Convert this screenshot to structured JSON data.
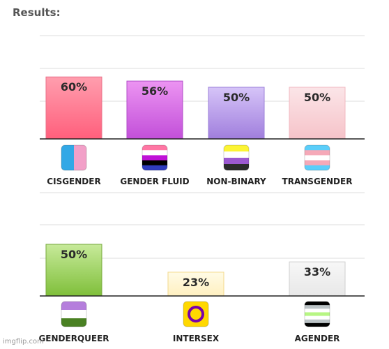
{
  "header": {
    "title": "Results:"
  },
  "watermark": "imgflip.com",
  "chart_data": [
    {
      "type": "bar",
      "ylim": [
        0,
        100
      ],
      "grid": true,
      "categories": [
        "CISGENDER",
        "GENDER FLUID",
        "NON-BINARY",
        "TRANSGENDER"
      ],
      "values": [
        60,
        56,
        50,
        50
      ],
      "data_labels": [
        "60%",
        "56%",
        "50%",
        "50%"
      ],
      "bar_colors": [
        [
          "#ff9eae",
          "#ff5f7c"
        ],
        [
          "#ec94f2",
          "#c24fd9"
        ],
        [
          "#d6c4f8",
          "#a07edd"
        ],
        [
          "#fbe5e8",
          "#f6c3c9"
        ]
      ],
      "bar_borders": [
        "#e8718a",
        "#b04dc8",
        "#9b80d8",
        "#f2b8c0"
      ],
      "flags": [
        [
          "#32a8e6",
          "#f2a0c8"
        ],
        [
          "#ff76a4",
          "#ffffff",
          "#c011d7",
          "#000000",
          "#2f3cbe"
        ],
        [
          "#fcf434",
          "#ffffff",
          "#9c59d1",
          "#2c2c2c"
        ],
        [
          "#5bcefa",
          "#f5a9b8",
          "#ffffff",
          "#f5a9b8",
          "#5bcefa"
        ]
      ]
    },
    {
      "type": "bar",
      "ylim": [
        0,
        100
      ],
      "grid": true,
      "categories": [
        "GENDERQUEER",
        "INTERSEX",
        "AGENDER"
      ],
      "values": [
        50,
        23,
        33
      ],
      "data_labels": [
        "50%",
        "23%",
        "33%"
      ],
      "bar_colors": [
        [
          "#c7ea9a",
          "#7fbf3a"
        ],
        [
          "#fffbe6",
          "#fff0c0"
        ],
        [
          "#f7f7f7",
          "#e8e8e8"
        ]
      ],
      "bar_borders": [
        "#77a83d",
        "#f3d98c",
        "#cfcfcf"
      ],
      "flags": [
        [
          "#b57edc",
          "#ffffff",
          "#4a8123"
        ],
        [
          "#ffd800",
          "#7902aa"
        ],
        [
          "#000000",
          "#bcc4c7",
          "#ffffff",
          "#b7f684",
          "#ffffff",
          "#bcc4c7",
          "#000000"
        ]
      ]
    }
  ]
}
